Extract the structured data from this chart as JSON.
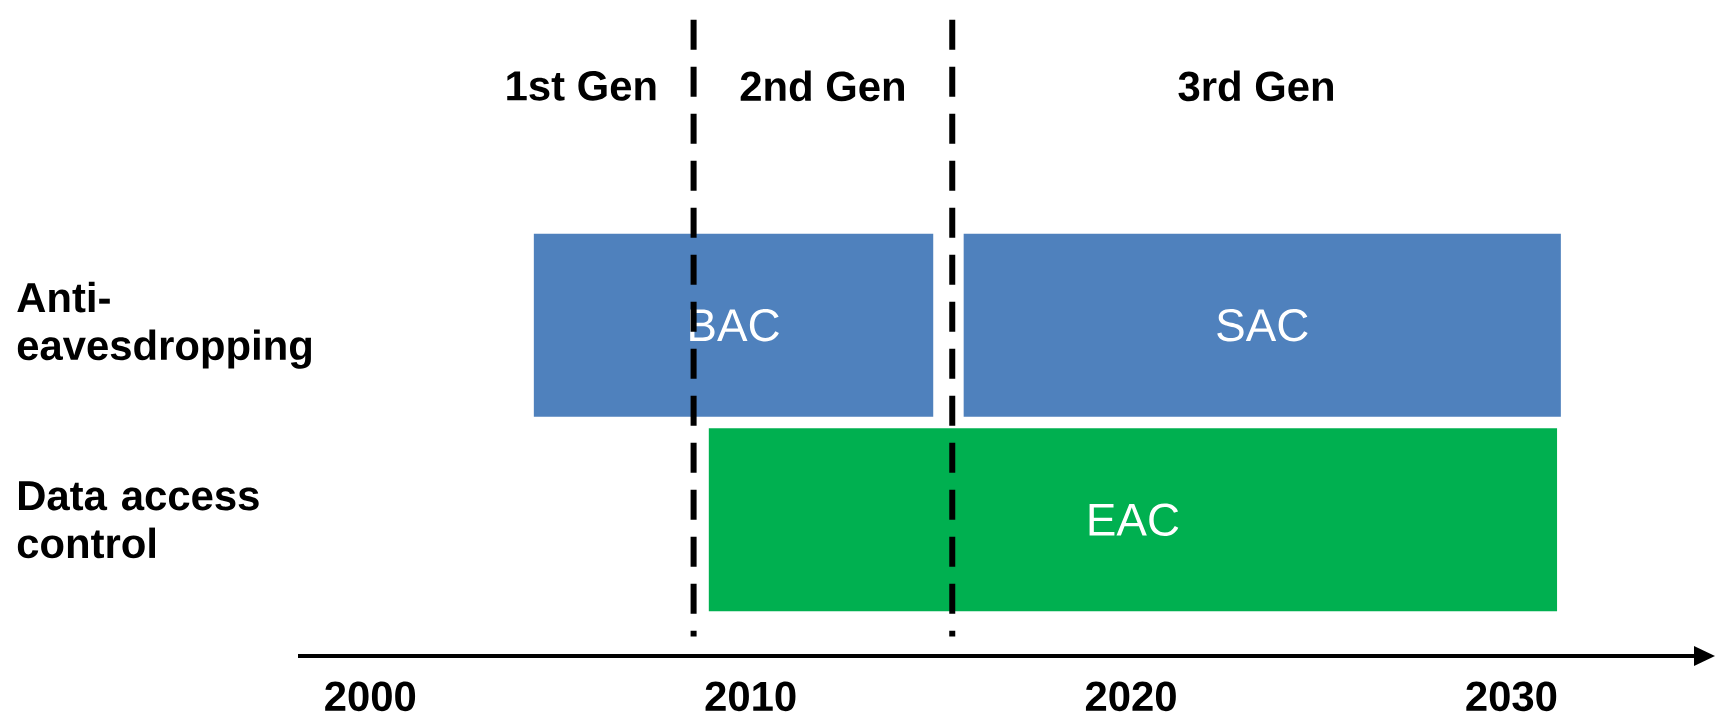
{
  "chart_data": {
    "type": "bar",
    "orientation": "horizontal",
    "categories": [
      "Anti-eavesdropping",
      "Data access control"
    ],
    "series": [
      {
        "color": "#4f81bd",
        "values": [
          10.5,
          null
        ],
        "base": [
          2004.3,
          null
        ],
        "value_labels": [
          "BAC",
          null
        ]
      },
      {
        "color": "#4f81bd",
        "values": [
          15.7,
          null
        ],
        "base": [
          2015.6,
          null
        ],
        "value_labels": [
          "SAC",
          null
        ]
      },
      {
        "color": "#00b050",
        "values": [
          null,
          22.3
        ],
        "base": [
          null,
          2008.9
        ],
        "value_labels": [
          null,
          "EAC"
        ]
      }
    ],
    "xlim": [
      1998.1,
      2034.8
    ],
    "xticks": [
      2000,
      2010,
      2020,
      2030
    ],
    "ref_lines": [
      {
        "axis": "x",
        "value": 2008.5,
        "line_style": "dashed",
        "color": "#000000"
      },
      {
        "axis": "x",
        "value": 2015.3,
        "line_style": "dashed",
        "color": "#000000"
      }
    ],
    "annotations": [
      "1st  Gen",
      "2nd Gen",
      "3rd Gen"
    ]
  }
}
